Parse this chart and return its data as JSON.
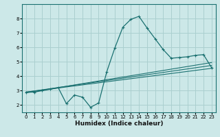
{
  "xlabel": "Humidex (Indice chaleur)",
  "ylabel": "",
  "bg_color": "#cce8e8",
  "grid_color": "#aacfcf",
  "line_color": "#1a7070",
  "xlim": [
    -0.5,
    23.5
  ],
  "ylim": [
    1.5,
    9.0
  ],
  "yticks": [
    2,
    3,
    4,
    5,
    6,
    7,
    8
  ],
  "xticks": [
    0,
    1,
    2,
    3,
    4,
    5,
    6,
    7,
    8,
    9,
    10,
    11,
    12,
    13,
    14,
    15,
    16,
    17,
    18,
    19,
    20,
    21,
    22,
    23
  ],
  "main_line_x": [
    0,
    1,
    2,
    3,
    4,
    5,
    6,
    7,
    8,
    9,
    10,
    11,
    12,
    13,
    14,
    15,
    16,
    17,
    18,
    19,
    20,
    21,
    22,
    23
  ],
  "main_line_y": [
    2.9,
    2.9,
    3.0,
    3.1,
    3.2,
    2.1,
    2.7,
    2.55,
    1.85,
    2.15,
    4.3,
    5.95,
    7.4,
    7.95,
    8.15,
    7.35,
    6.6,
    5.85,
    5.25,
    5.3,
    5.35,
    5.45,
    5.5,
    4.6
  ],
  "reg_line1_x": [
    0,
    23
  ],
  "reg_line1_y": [
    2.9,
    4.55
  ],
  "reg_line2_x": [
    0,
    23
  ],
  "reg_line2_y": [
    2.9,
    4.75
  ],
  "reg_line3_x": [
    0,
    23
  ],
  "reg_line3_y": [
    2.85,
    4.95
  ]
}
